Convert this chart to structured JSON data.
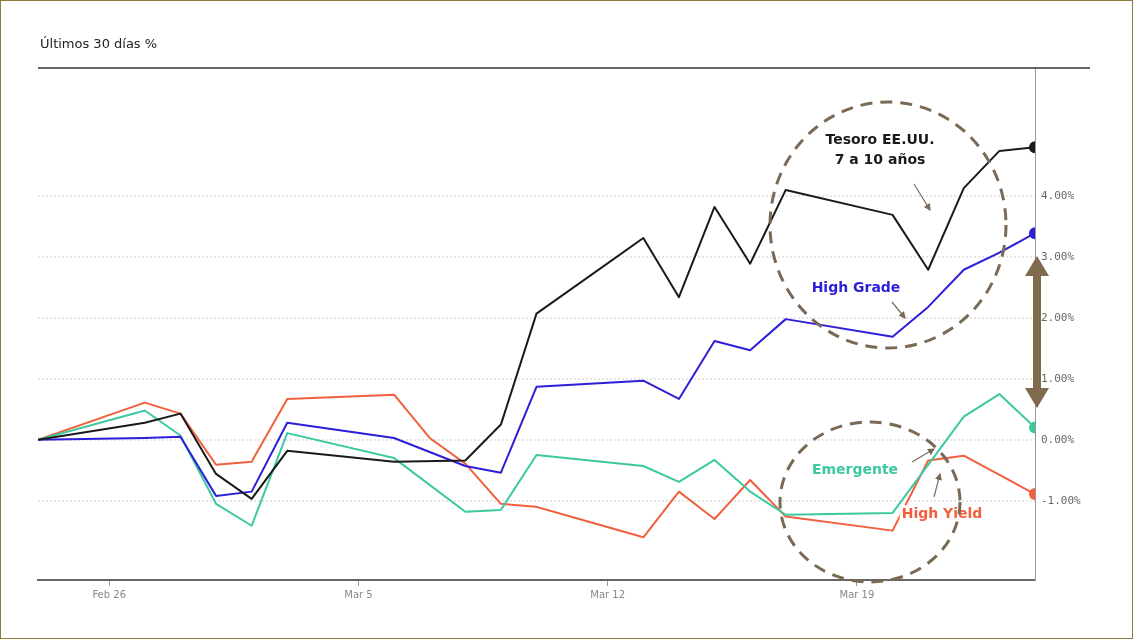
{
  "chart_data": {
    "type": "line",
    "title": "Últimos 30 días %",
    "xlim": [
      "--02-24",
      "--03-24"
    ],
    "xticks": [
      {
        "value": "--02-26",
        "label": "Feb 26"
      },
      {
        "value": "--03-05",
        "label": "Mar 5"
      },
      {
        "value": "--03-12",
        "label": "Mar 12"
      },
      {
        "value": "--03-19",
        "label": "Mar 19"
      }
    ],
    "ylim": [
      -2.3,
      6.1
    ],
    "yticks": [
      {
        "value": -1,
        "label": "-1.00%"
      },
      {
        "value": 0,
        "label": "0.00%"
      },
      {
        "value": 1,
        "label": "1.00%"
      },
      {
        "value": 2,
        "label": "2.00%"
      },
      {
        "value": 3,
        "label": "3.00%"
      },
      {
        "value": 4,
        "label": "4.00%"
      }
    ],
    "grid": "y",
    "legend": false,
    "series": [
      {
        "name": "Tesoro EE.UU.\n7 a 10 años",
        "color": "#1a1a1a",
        "x": [
          "--02-24",
          "--02-27",
          "--02-28",
          "--03-01",
          "--03-02",
          "--03-03",
          "--03-06",
          "--03-08",
          "--03-09",
          "--03-10",
          "--03-13",
          "--03-14",
          "--03-15",
          "--03-16",
          "--03-17",
          "--03-20",
          "--03-21",
          "--03-22",
          "--03-23",
          "--03-24"
        ],
        "values": [
          0,
          0.28,
          0.43,
          -0.56,
          -0.97,
          -0.18,
          -0.36,
          -0.34,
          0.25,
          2.07,
          3.31,
          2.34,
          3.82,
          2.89,
          4.1,
          3.69,
          2.79,
          4.13,
          4.74,
          4.8
        ]
      },
      {
        "name": "High Grade",
        "color": "#2d1fd8",
        "x": [
          "--02-24",
          "--02-27",
          "--02-28",
          "--03-01",
          "--03-02",
          "--03-03",
          "--03-06",
          "--03-08",
          "--03-09",
          "--03-10",
          "--03-13",
          "--03-14",
          "--03-15",
          "--03-16",
          "--03-17",
          "--03-20",
          "--03-21",
          "--03-22",
          "--03-23",
          "--03-24"
        ],
        "values": [
          0,
          0.03,
          0.05,
          -0.92,
          -0.85,
          0.28,
          0.03,
          -0.43,
          -0.54,
          0.87,
          0.97,
          0.67,
          1.62,
          1.47,
          1.98,
          1.69,
          2.18,
          2.79,
          3.07,
          3.39
        ]
      },
      {
        "name": "Emergente",
        "color": "#3cc9a0",
        "x": [
          "--02-24",
          "--02-27",
          "--02-28",
          "--03-01",
          "--03-02",
          "--03-03",
          "--03-06",
          "--03-08",
          "--03-09",
          "--03-10",
          "--03-13",
          "--03-14",
          "--03-15",
          "--03-16",
          "--03-17",
          "--03-20",
          "--03-22",
          "--03-23",
          "--03-24"
        ],
        "values": [
          0,
          0.48,
          0.07,
          -1.05,
          -1.41,
          0.11,
          -0.3,
          -1.18,
          -1.15,
          -0.25,
          -0.43,
          -0.69,
          -0.33,
          -0.85,
          -1.23,
          -1.2,
          0.38,
          0.75,
          0.2
        ]
      },
      {
        "name": "High Yield",
        "color": "#f0603c",
        "x": [
          "--02-24",
          "--02-27",
          "--02-28",
          "--03-01",
          "--03-02",
          "--03-03",
          "--03-06",
          "--03-07",
          "--03-08",
          "--03-09",
          "--03-10",
          "--03-13",
          "--03-14",
          "--03-15",
          "--03-16",
          "--03-17",
          "--03-20",
          "--03-21",
          "--03-22",
          "--03-24"
        ],
        "values": [
          0,
          0.61,
          0.43,
          -0.41,
          -0.36,
          0.67,
          0.74,
          0.03,
          -0.39,
          -1.05,
          -1.1,
          -1.6,
          -0.85,
          -1.3,
          -0.66,
          -1.26,
          -1.49,
          -0.34,
          -0.26,
          -0.89
        ]
      }
    ]
  }
}
